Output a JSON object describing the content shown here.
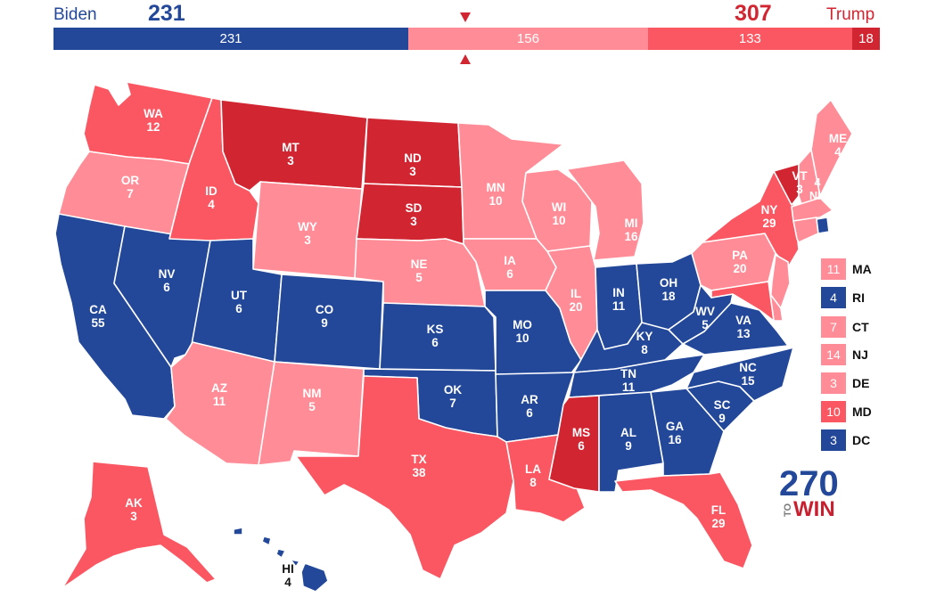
{
  "colors": {
    "dem_safe": "#23489a",
    "tossup": "#ff8c96",
    "rep_lean": "#fa5762",
    "rep_safe": "#d22532",
    "indicator": "#d22532"
  },
  "header": {
    "dem_name": "Biden",
    "dem_total": "231",
    "rep_name": "Trump",
    "rep_total": "307"
  },
  "bar": {
    "segments": [
      {
        "label": "231",
        "value": 231,
        "category": "dem_safe"
      },
      {
        "label": "156",
        "value": 156,
        "category": "tossup"
      },
      {
        "label": "133",
        "value": 133,
        "category": "rep_lean"
      },
      {
        "label": "18",
        "value": 18,
        "category": "rep_safe"
      }
    ]
  },
  "states": {
    "WA": {
      "abbr": "WA",
      "votes": "12",
      "category": "rep_lean"
    },
    "OR": {
      "abbr": "OR",
      "votes": "7",
      "category": "tossup"
    },
    "CA": {
      "abbr": "CA",
      "votes": "55",
      "category": "dem_safe"
    },
    "NV": {
      "abbr": "NV",
      "votes": "6",
      "category": "dem_safe"
    },
    "ID": {
      "abbr": "ID",
      "votes": "4",
      "category": "rep_lean"
    },
    "MT": {
      "abbr": "MT",
      "votes": "3",
      "category": "rep_safe"
    },
    "WY": {
      "abbr": "WY",
      "votes": "3",
      "category": "tossup"
    },
    "UT": {
      "abbr": "UT",
      "votes": "6",
      "category": "dem_safe"
    },
    "AZ": {
      "abbr": "AZ",
      "votes": "11",
      "category": "tossup"
    },
    "CO": {
      "abbr": "CO",
      "votes": "9",
      "category": "dem_safe"
    },
    "NM": {
      "abbr": "NM",
      "votes": "5",
      "category": "tossup"
    },
    "ND": {
      "abbr": "ND",
      "votes": "3",
      "category": "rep_safe"
    },
    "SD": {
      "abbr": "SD",
      "votes": "3",
      "category": "rep_safe"
    },
    "NE": {
      "abbr": "NE",
      "votes": "5",
      "category": "tossup"
    },
    "KS": {
      "abbr": "KS",
      "votes": "6",
      "category": "dem_safe"
    },
    "OK": {
      "abbr": "OK",
      "votes": "7",
      "category": "dem_safe"
    },
    "TX": {
      "abbr": "TX",
      "votes": "38",
      "category": "rep_lean"
    },
    "MN": {
      "abbr": "MN",
      "votes": "10",
      "category": "tossup"
    },
    "IA": {
      "abbr": "IA",
      "votes": "6",
      "category": "tossup"
    },
    "MO": {
      "abbr": "MO",
      "votes": "10",
      "category": "dem_safe"
    },
    "AR": {
      "abbr": "AR",
      "votes": "6",
      "category": "dem_safe"
    },
    "LA": {
      "abbr": "LA",
      "votes": "8",
      "category": "rep_lean"
    },
    "WI": {
      "abbr": "WI",
      "votes": "10",
      "category": "tossup"
    },
    "IL": {
      "abbr": "IL",
      "votes": "20",
      "category": "tossup"
    },
    "MI": {
      "abbr": "MI",
      "votes": "16",
      "category": "tossup"
    },
    "IN": {
      "abbr": "IN",
      "votes": "11",
      "category": "dem_safe"
    },
    "OH": {
      "abbr": "OH",
      "votes": "18",
      "category": "dem_safe"
    },
    "KY": {
      "abbr": "KY",
      "votes": "8",
      "category": "dem_safe"
    },
    "TN": {
      "abbr": "TN",
      "votes": "11",
      "category": "dem_safe"
    },
    "MS": {
      "abbr": "MS",
      "votes": "6",
      "category": "rep_safe"
    },
    "AL": {
      "abbr": "AL",
      "votes": "9",
      "category": "dem_safe"
    },
    "GA": {
      "abbr": "GA",
      "votes": "16",
      "category": "dem_safe"
    },
    "FL": {
      "abbr": "FL",
      "votes": "29",
      "category": "rep_lean"
    },
    "SC": {
      "abbr": "SC",
      "votes": "9",
      "category": "dem_safe"
    },
    "NC": {
      "abbr": "NC",
      "votes": "15",
      "category": "dem_safe"
    },
    "VA": {
      "abbr": "VA",
      "votes": "13",
      "category": "dem_safe"
    },
    "WV": {
      "abbr": "WV",
      "votes": "5",
      "category": "dem_safe"
    },
    "PA": {
      "abbr": "PA",
      "votes": "20",
      "category": "tossup"
    },
    "NY": {
      "abbr": "NY",
      "votes": "29",
      "category": "rep_lean"
    },
    "VT": {
      "abbr": "VT",
      "votes": "3",
      "category": "rep_safe"
    },
    "NH": {
      "abbr": "NH",
      "votes": "4",
      "category": "tossup"
    },
    "ME": {
      "abbr": "ME",
      "votes": "4",
      "category": "tossup"
    },
    "MA": {
      "abbr": "MA",
      "votes": "11",
      "category": "tossup"
    },
    "RI": {
      "abbr": "RI",
      "votes": "4",
      "category": "dem_safe"
    },
    "CT": {
      "abbr": "CT",
      "votes": "7",
      "category": "tossup"
    },
    "NJ": {
      "abbr": "NJ",
      "votes": "14",
      "category": "tossup"
    },
    "DE": {
      "abbr": "DE",
      "votes": "3",
      "category": "tossup"
    },
    "MD": {
      "abbr": "MD",
      "votes": "10",
      "category": "rep_lean"
    },
    "DC": {
      "abbr": "DC",
      "votes": "3",
      "category": "dem_safe"
    },
    "AK": {
      "abbr": "AK",
      "votes": "3",
      "category": "rep_lean"
    },
    "HI": {
      "abbr": "HI",
      "votes": "4",
      "category": "dem_safe"
    }
  },
  "legend": [
    "MA",
    "RI",
    "CT",
    "NJ",
    "DE",
    "MD",
    "DC"
  ],
  "logo": {
    "number": "270",
    "prefix": "TO",
    "suffix": "WIN"
  }
}
